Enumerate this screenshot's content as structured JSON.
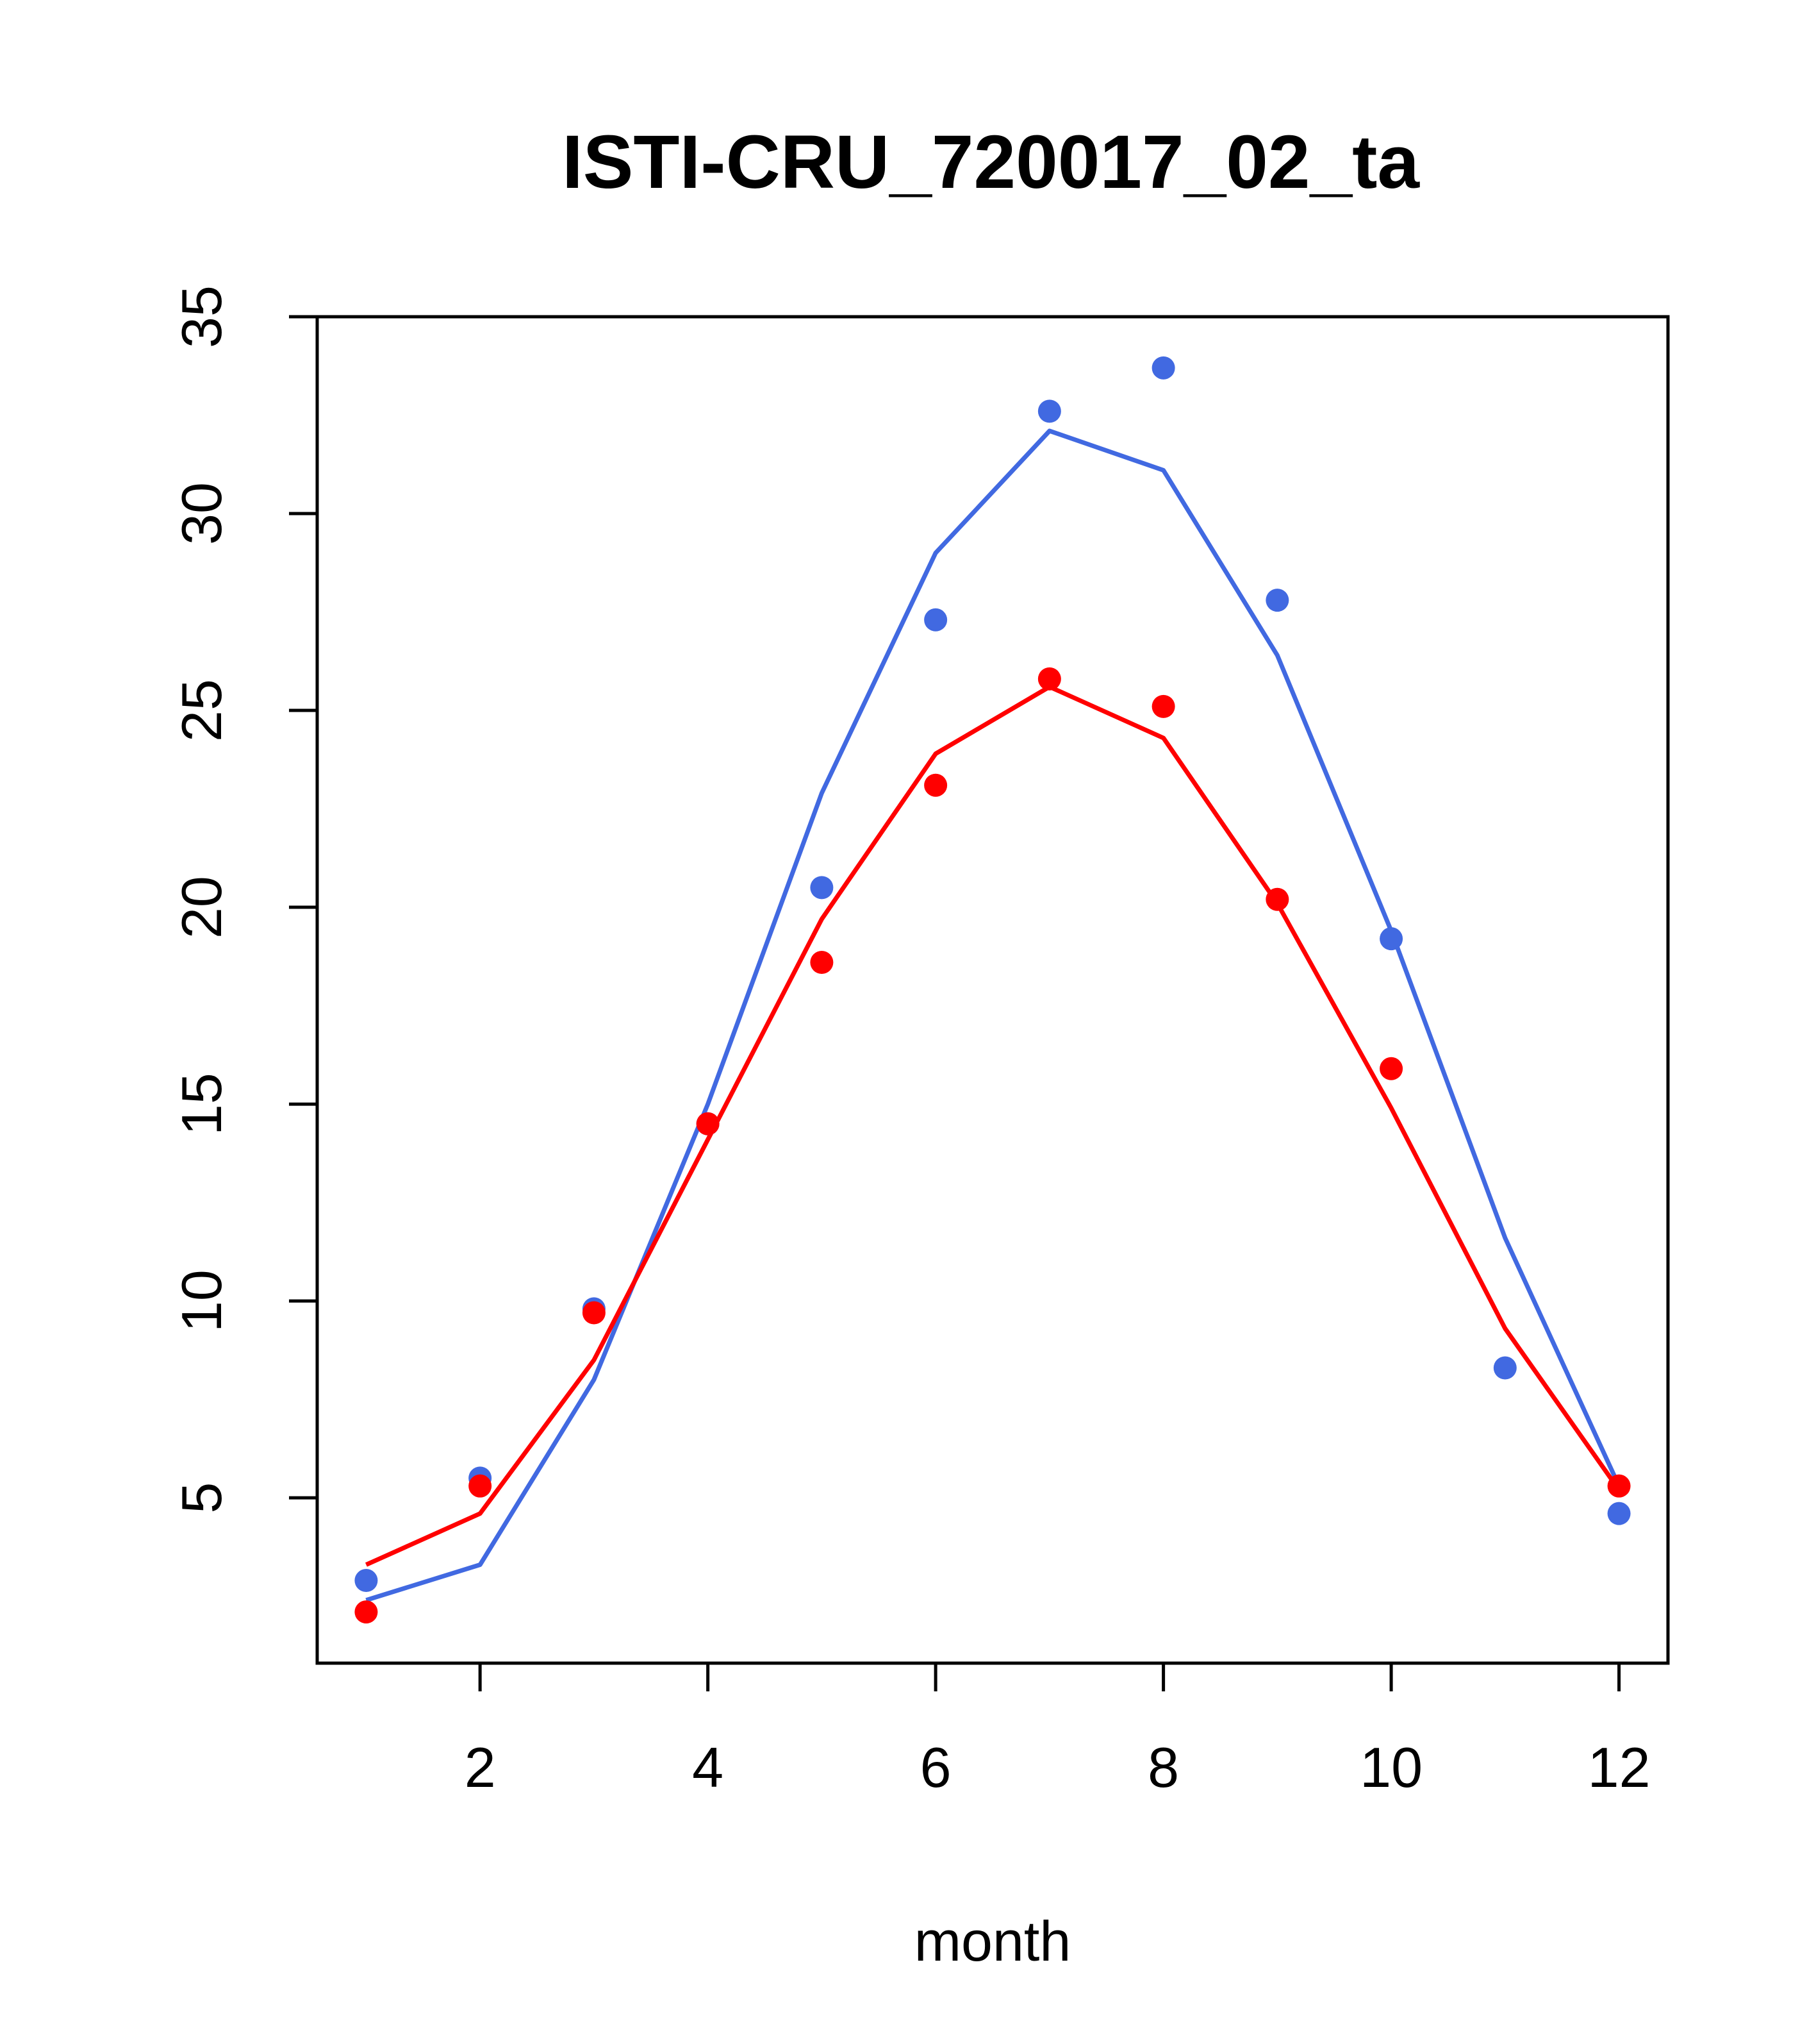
{
  "chart_data": {
    "type": "line",
    "title": "ISTI-CRU_720017_02_ta",
    "xlabel": "month",
    "ylabel": "",
    "xlim": [
      0.57,
      12.43
    ],
    "ylim": [
      0.8,
      35
    ],
    "xticks": [
      2,
      4,
      6,
      8,
      10,
      12
    ],
    "yticks": [
      5,
      10,
      15,
      20,
      25,
      30,
      35
    ],
    "grid": false,
    "series": [
      {
        "name": "blue",
        "color": "#4169E1",
        "x": [
          1,
          2,
          3,
          4,
          5,
          6,
          7,
          8,
          9,
          10,
          11,
          12
        ],
        "points": [
          2.9,
          5.5,
          9.8,
          14.5,
          20.5,
          27.3,
          32.6,
          33.7,
          27.8,
          19.2,
          8.3,
          4.6
        ],
        "line": [
          2.4,
          3.3,
          8.0,
          15.0,
          22.9,
          29.0,
          32.1,
          31.1,
          26.4,
          19.4,
          11.6,
          5.3
        ]
      },
      {
        "name": "red",
        "color": "#FF0000",
        "x": [
          1,
          2,
          3,
          4,
          5,
          6,
          7,
          8,
          9,
          10,
          11,
          12
        ],
        "points": [
          2.1,
          5.3,
          9.7,
          14.5,
          18.6,
          23.1,
          25.8,
          25.1,
          20.2,
          15.9,
          null,
          5.3
        ],
        "line": [
          3.3,
          4.6,
          8.5,
          14.1,
          19.7,
          23.9,
          25.6,
          24.3,
          20.1,
          14.9,
          9.3,
          5.2
        ]
      }
    ]
  }
}
